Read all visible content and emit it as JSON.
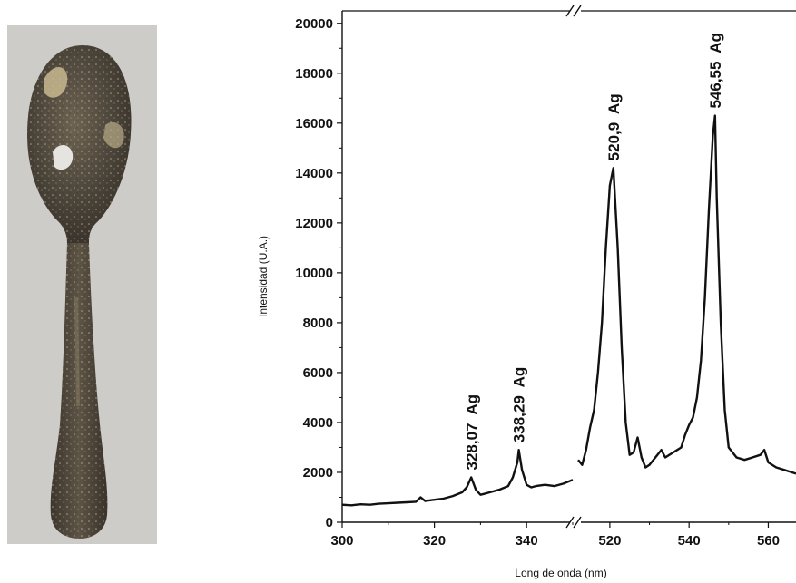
{
  "chart_data": {
    "type": "line",
    "xlabel": "Long de onda (nm)",
    "ylabel": "Intensidad (U.A.)",
    "ylim": [
      0,
      20500
    ],
    "axis_break": true,
    "x_segments": [
      {
        "range": [
          300,
          350
        ],
        "ticks": [
          "300",
          "320",
          "340"
        ]
      },
      {
        "range": [
          512,
          567
        ],
        "ticks": [
          "520",
          "540",
          "560"
        ]
      }
    ],
    "yticks": [
      "0",
      "2000",
      "4000",
      "6000",
      "8000",
      "10000",
      "12000",
      "14000",
      "16000",
      "18000",
      "20000"
    ],
    "series": [
      {
        "segment1": {
          "x": [
            300,
            302,
            304,
            306,
            308,
            310,
            312,
            314,
            316,
            317,
            318,
            320,
            322,
            324,
            326,
            327,
            328,
            329,
            330,
            331,
            332,
            334,
            336,
            337,
            338,
            338.3,
            339,
            340,
            341,
            342,
            344,
            346,
            348,
            350
          ],
          "y": [
            700,
            680,
            720,
            700,
            740,
            760,
            780,
            800,
            820,
            1000,
            850,
            900,
            950,
            1050,
            1200,
            1400,
            1800,
            1300,
            1100,
            1150,
            1200,
            1300,
            1450,
            1800,
            2400,
            2900,
            2100,
            1500,
            1400,
            1450,
            1500,
            1450,
            1550,
            1700
          ]
        },
        "segment2": {
          "x": [
            512,
            513,
            514,
            515,
            516,
            517,
            518,
            519,
            520,
            520.9,
            522,
            523,
            524,
            525,
            526,
            527,
            528,
            529,
            530,
            532,
            533,
            534,
            536,
            538,
            539,
            540,
            541,
            542,
            543,
            544,
            545,
            546,
            546.55,
            547,
            548,
            549,
            550,
            552,
            554,
            556,
            558,
            559,
            560,
            562,
            564,
            566,
            567
          ],
          "y": [
            2500,
            2300,
            2900,
            3800,
            4500,
            6000,
            8000,
            11000,
            13500,
            14200,
            11000,
            7000,
            4000,
            2700,
            2800,
            3400,
            2600,
            2200,
            2300,
            2700,
            2900,
            2600,
            2800,
            3000,
            3500,
            3900,
            4200,
            5000,
            6500,
            9000,
            12500,
            15500,
            16300,
            13000,
            8000,
            4500,
            3000,
            2600,
            2500,
            2600,
            2700,
            2900,
            2400,
            2200,
            2100,
            2000,
            1950
          ]
        }
      }
    ],
    "annotations": [
      "328,07  Ag",
      "338,29  Ag",
      "520,9  Ag",
      "546,55  Ag"
    ],
    "peaks": [
      {
        "x": 328.07,
        "y": 1800,
        "segment": 1
      },
      {
        "x": 338.29,
        "y": 2900,
        "segment": 1
      },
      {
        "x": 520.9,
        "y": 14200,
        "segment": 2
      },
      {
        "x": 546.55,
        "y": 16300,
        "segment": 2
      }
    ]
  },
  "photo": {
    "icon": "spoon-icon"
  }
}
